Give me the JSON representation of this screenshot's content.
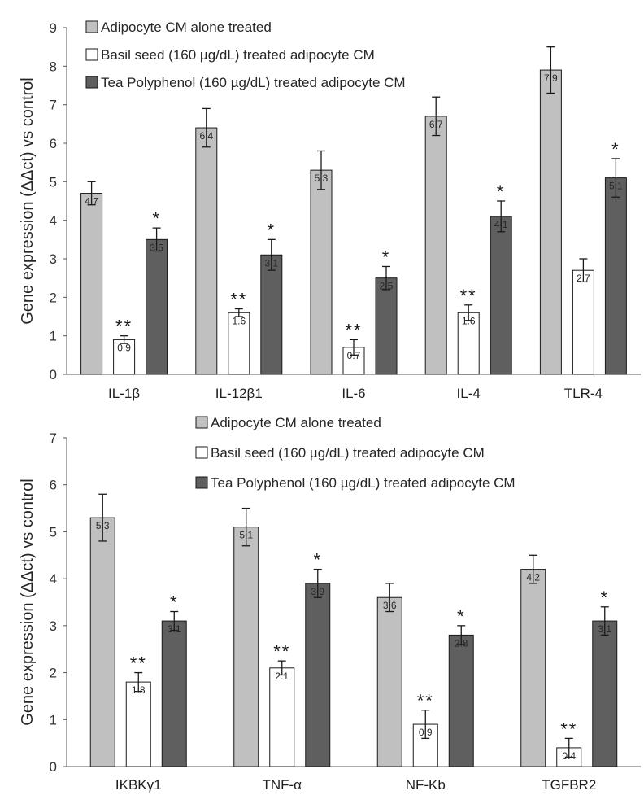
{
  "colors": {
    "series_1": "#c0c0c0",
    "series_2": "#ffffff",
    "series_3": "#5f5f5f",
    "edge": "#1a1a1a"
  },
  "chart_data": [
    {
      "type": "bar",
      "title": "",
      "xlabel": "",
      "ylabel": "Gene expression (ΔΔct) vs control",
      "ylim": [
        0,
        9
      ],
      "yticks": [
        0,
        1,
        2,
        3,
        4,
        5,
        6,
        7,
        8,
        9
      ],
      "grid": false,
      "legend_position": "top-left",
      "categories": [
        "IL-1β",
        "IL-12β1",
        "IL-6",
        "IL-4",
        "TLR-4"
      ],
      "series": [
        {
          "name": "Adipocyte CM alone treated",
          "values": [
            4.7,
            6.4,
            5.3,
            6.7,
            7.9
          ],
          "errors": [
            0.3,
            0.5,
            0.5,
            0.5,
            0.6
          ],
          "sig": [
            "",
            "",
            "",
            "",
            ""
          ]
        },
        {
          "name": "Basil seed (160 µg/dL) treated adipocyte CM",
          "values": [
            0.9,
            1.6,
            0.7,
            1.6,
            2.7
          ],
          "errors": [
            0.1,
            0.1,
            0.2,
            0.2,
            0.3
          ],
          "sig": [
            "**",
            "**",
            "**",
            "**",
            ""
          ]
        },
        {
          "name": "Tea Polyphenol (160 µg/dL) treated adipocyte CM",
          "values": [
            3.5,
            3.1,
            2.5,
            4.1,
            5.1
          ],
          "errors": [
            0.3,
            0.4,
            0.3,
            0.4,
            0.5
          ],
          "sig": [
            "*",
            "*",
            "*",
            "*",
            "*"
          ]
        }
      ]
    },
    {
      "type": "bar",
      "title": "",
      "xlabel": "",
      "ylabel": "Gene expression (ΔΔct) vs control",
      "ylim": [
        0,
        7
      ],
      "yticks": [
        0,
        1,
        2,
        3,
        4,
        5,
        6,
        7
      ],
      "grid": false,
      "legend_position": "top-right",
      "categories": [
        "IKBKγ1",
        "TNF-α",
        "NF-Kb",
        "TGFBR2"
      ],
      "series": [
        {
          "name": "Adipocyte CM alone treated",
          "values": [
            5.3,
            5.1,
            3.6,
            4.2
          ],
          "errors": [
            0.5,
            0.4,
            0.3,
            0.3
          ],
          "sig": [
            "",
            "",
            "",
            ""
          ]
        },
        {
          "name": "Basil seed (160 µg/dL) treated adipocyte CM",
          "values": [
            1.8,
            2.1,
            0.9,
            0.4
          ],
          "errors": [
            0.2,
            0.15,
            0.3,
            0.2
          ],
          "sig": [
            "**",
            "**",
            "**",
            "**"
          ]
        },
        {
          "name": "Tea Polyphenol (160 µg/dL) treated adipocyte CM",
          "values": [
            3.1,
            3.9,
            2.8,
            3.1
          ],
          "errors": [
            0.2,
            0.3,
            0.2,
            0.3
          ],
          "sig": [
            "*",
            "*",
            "*",
            "*"
          ]
        }
      ]
    }
  ]
}
